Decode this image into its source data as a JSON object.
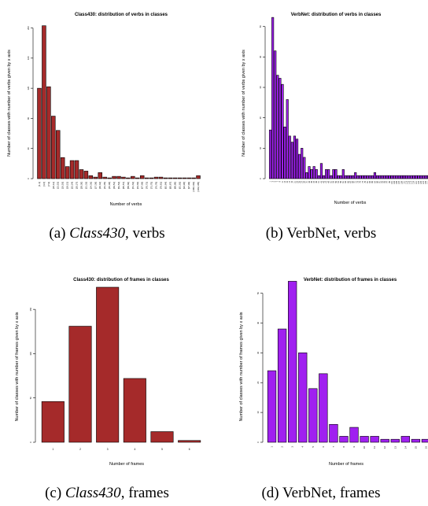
{
  "chart_data": [
    {
      "id": "a",
      "type": "bar",
      "title": "Class430: distribution of verbs in classes",
      "xlabel": "Number of verbs",
      "ylabel": "Number of classes with number of verbs given by x axis",
      "color": "#a52a2a",
      "ylim": [
        0,
        210
      ],
      "yticks": [
        0,
        40,
        80,
        120,
        160,
        200
      ],
      "ytick_labels": [
        "0",
        "40",
        "80",
        "120",
        "160",
        "200"
      ],
      "values": [
        120,
        203,
        122,
        83,
        64,
        28,
        16,
        24,
        24,
        12,
        10,
        4,
        2,
        8,
        2,
        1,
        3,
        3,
        2,
        1,
        3,
        1,
        4,
        1,
        1,
        2,
        2,
        1,
        1,
        1,
        1,
        1,
        1,
        1,
        4
      ],
      "tick_labels": [
        "[1,3]",
        "[4,6]",
        "[7,9]",
        "[10,12]",
        "[13,15]",
        "[16,18]",
        "[19,21]",
        "[22,24]",
        "[25,27]",
        "[28,30]",
        "[31,33]",
        "[34,36]",
        "[37,39]",
        "[40,42]",
        "[43,45]",
        "[46,48]",
        "[49,51]",
        "[52,54]",
        "[55,57]",
        "[58,60]",
        "[61,63]",
        "[64,66]",
        "[67,69]",
        "[70,72]",
        "[73,75]",
        "[76,78]",
        "[79,81]",
        "[82,84]",
        "[85,87]",
        "[88,90]",
        "[91,93]",
        "[94,96]",
        "[97,99]",
        "[100,102]",
        "[103,105]"
      ]
    },
    {
      "id": "b",
      "type": "bar",
      "title": "VerbNet: distribution of verbs in classes",
      "xlabel": "Number of verbs",
      "ylabel": "Number of classes with number of verbs given by x axis",
      "color": "#a020f0",
      "ylim": [
        0,
        52
      ],
      "yticks": [
        0,
        10,
        20,
        30,
        40,
        50
      ],
      "ytick_labels": [
        "0",
        "10",
        "20",
        "30",
        "40",
        "50"
      ],
      "values": [
        16,
        53,
        42,
        34,
        33,
        31,
        17,
        26,
        14,
        12,
        14,
        13,
        8,
        10,
        7,
        2,
        4,
        3,
        4,
        3,
        1,
        5,
        1,
        3,
        3,
        1,
        3,
        3,
        1,
        1,
        3,
        1,
        1,
        1,
        1,
        2,
        1,
        1,
        1,
        1,
        1,
        1,
        1,
        2,
        1,
        1,
        1,
        1,
        1,
        1,
        1,
        1,
        1,
        1,
        1,
        1,
        1,
        1,
        1,
        1,
        1,
        1,
        1,
        1,
        1,
        1
      ],
      "tick_labels": [
        "1",
        "3",
        "5",
        "7",
        "9",
        "11",
        "13",
        "15",
        "17",
        "19",
        "21",
        "23",
        "25",
        "27",
        "29",
        "31",
        "33",
        "35",
        "37",
        "39",
        "41",
        "43",
        "45",
        "47",
        "49",
        "51",
        "53",
        "55",
        "57",
        "59",
        "61",
        "63",
        "65",
        "67",
        "69",
        "71",
        "73",
        "75",
        "77",
        "79",
        "81",
        "83",
        "85",
        "87",
        "89",
        "91",
        "93",
        "95",
        "97",
        "99",
        "101",
        "103",
        "105",
        "107",
        "109",
        "111",
        "113",
        "115",
        "117",
        "119",
        "121",
        "123",
        "125",
        "127",
        "129",
        "131"
      ]
    },
    {
      "id": "c",
      "type": "bar",
      "title": "Class430: distribution of frames in classes",
      "xlabel": "Number of frames",
      "ylabel": "Number of classes with number of frames given by x axis",
      "color": "#a52a2a",
      "ylim": [
        0,
        175
      ],
      "yticks": [
        0,
        50,
        100,
        150
      ],
      "ytick_labels": [
        "0",
        "50",
        "100",
        "150"
      ],
      "values": [
        46,
        131,
        175,
        72,
        12,
        2
      ],
      "tick_labels": [
        "1",
        "2",
        "3",
        "4",
        "5",
        "6"
      ]
    },
    {
      "id": "d",
      "type": "bar",
      "title": "VerbNet: distribution of frames in classes",
      "xlabel": "Number of frames",
      "ylabel": "Number of classes with number of frames given by x axis",
      "color": "#a020f0",
      "ylim": [
        0,
        52
      ],
      "yticks": [
        0,
        10,
        20,
        30,
        40,
        50
      ],
      "ytick_labels": [
        "0",
        "10",
        "20",
        "30",
        "40",
        "50"
      ],
      "values": [
        24,
        38,
        54,
        30,
        18,
        23,
        6,
        2,
        5,
        2,
        2,
        1,
        1,
        2,
        1,
        1
      ],
      "tick_labels": [
        "1",
        "2",
        "3",
        "4",
        "5",
        "6",
        "7",
        "8",
        "9",
        "10",
        "11",
        "12",
        "13",
        "14",
        "15",
        "16"
      ]
    }
  ],
  "captions": {
    "a": {
      "prefix": "(a) ",
      "italic": "Class430",
      "suffix": ", verbs"
    },
    "b": {
      "prefix": "(b) ",
      "italic": "",
      "suffix": "VerbNet, verbs"
    },
    "c": {
      "prefix": "(c) ",
      "italic": "Class430",
      "suffix": ", frames"
    },
    "d": {
      "prefix": "(d) ",
      "italic": "",
      "suffix": "VerbNet, frames"
    }
  }
}
